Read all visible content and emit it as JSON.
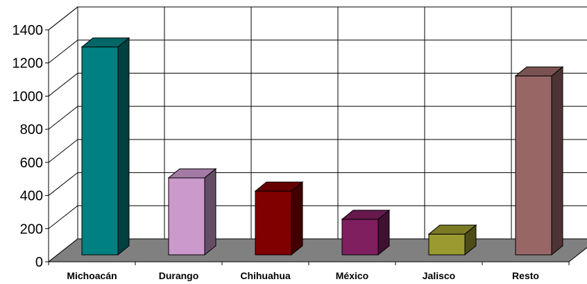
{
  "chart_data": {
    "type": "bar",
    "style": "3d-column",
    "categories": [
      "Michoacán",
      "Durango",
      "Chihuahua",
      "México",
      "Jalisco",
      "Resto"
    ],
    "values": [
      1255,
      465,
      385,
      215,
      125,
      1080
    ],
    "colors": [
      "#008080",
      "#cc99cc",
      "#800000",
      "#7f1f5f",
      "#9a9a30",
      "#996666"
    ],
    "y_ticks": [
      "0",
      "200",
      "400",
      "600",
      "800",
      "1000",
      "1200",
      "1400"
    ],
    "ylim": [
      0,
      1400
    ],
    "grid": true,
    "floor_color": "#808080"
  }
}
